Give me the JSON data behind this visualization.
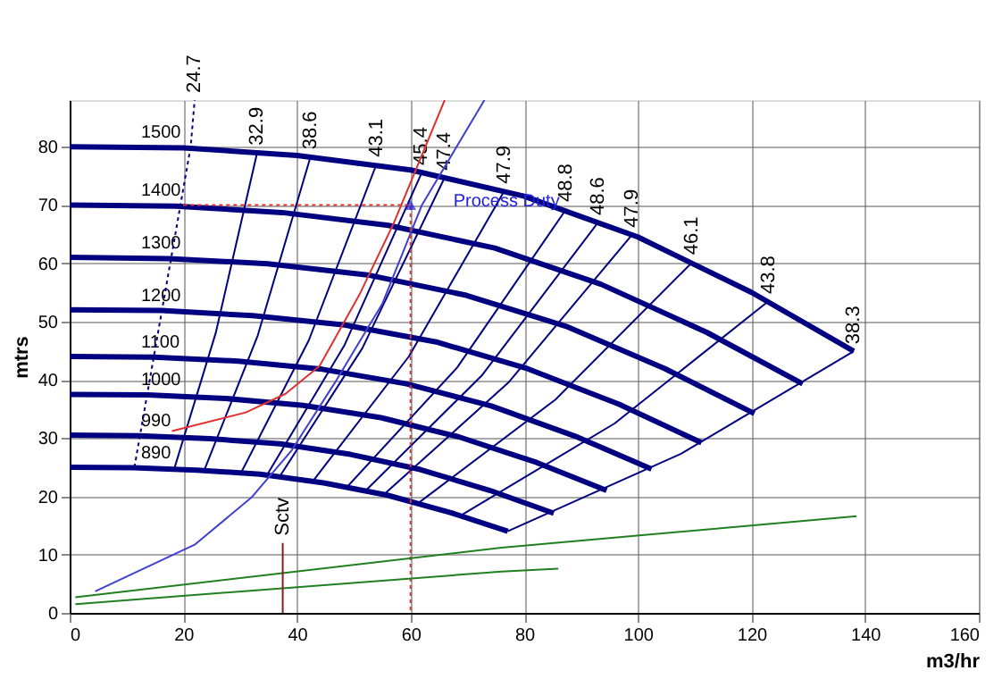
{
  "chart_data": {
    "type": "line",
    "xlabel": "m3/hr",
    "ylabel": "mtrs",
    "xlim": [
      0,
      160
    ],
    "ylim": [
      0,
      88
    ],
    "xticks": [
      0,
      20,
      40,
      60,
      80,
      100,
      120,
      140,
      160
    ],
    "yticks": [
      0,
      10,
      20,
      30,
      40,
      50,
      60,
      70,
      80
    ],
    "grid": true,
    "marker": "none",
    "annotations": [
      {
        "text": "Process Duty",
        "x": 60,
        "y": 70
      }
    ],
    "series": [
      {
        "name": "1500",
        "color": "#000080",
        "x": [
          0,
          20,
          40,
          60,
          80,
          100,
          120,
          138
        ],
        "values": [
          80,
          79.8,
          78.5,
          76,
          71.5,
          64.5,
          55,
          44.9
        ]
      },
      {
        "name": "1400",
        "color": "#000080",
        "x": [
          0,
          18.7,
          37.4,
          56.1,
          74.8,
          93.5,
          112.2,
          129
        ],
        "values": [
          70,
          69.8,
          68.7,
          66.5,
          62.6,
          56.4,
          48.1,
          39.3
        ]
      },
      {
        "name": "1300",
        "color": "#000080",
        "x": [
          0,
          17.5,
          34.9,
          52.4,
          69.8,
          87.3,
          104.8,
          120.5
        ],
        "values": [
          61,
          60.8,
          59.9,
          58,
          54.5,
          49.2,
          41.9,
          34.2
        ]
      },
      {
        "name": "1200",
        "color": "#000080",
        "x": [
          0,
          16.1,
          32.2,
          48.4,
          64.5,
          80.6,
          96.7,
          111.2
        ],
        "values": [
          52,
          51.9,
          51,
          49.4,
          46.5,
          41.9,
          35.8,
          29.2
        ]
      },
      {
        "name": "1100",
        "color": "#000080",
        "x": [
          0,
          14.8,
          29.7,
          44.5,
          59.3,
          74.2,
          89,
          102.4
        ],
        "values": [
          44,
          43.9,
          43.2,
          41.8,
          39.3,
          35.5,
          30.3,
          24.7
        ]
      },
      {
        "name": "1000",
        "color": "#000080",
        "x": [
          0,
          13.7,
          27.4,
          41.1,
          54.8,
          68.5,
          82.2,
          94.5
        ],
        "values": [
          37.5,
          37.4,
          36.8,
          35.6,
          33.5,
          30.2,
          25.8,
          21
        ]
      },
      {
        "name": "990",
        "color": "#000080",
        "x": [
          0,
          12.3,
          24.7,
          37,
          49.4,
          61.7,
          74,
          85.2
        ],
        "values": [
          30.5,
          30.4,
          29.9,
          29,
          27.2,
          24.6,
          21,
          17.1
        ]
      },
      {
        "name": "890",
        "color": "#000080",
        "x": [
          0,
          11.2,
          22.4,
          33.5,
          44.7,
          55.9,
          67.1,
          77.1
        ],
        "values": [
          25,
          24.9,
          24.5,
          23.8,
          22.3,
          20.2,
          17.2,
          14
        ]
      },
      {
        "name": "24.7",
        "color": "#000080",
        "line_style": "dotted",
        "x": [
          11.4,
          21.3,
          22
        ],
        "values": [
          25,
          80,
          88
        ]
      },
      {
        "name": "32.9",
        "color": "#000080",
        "x": [
          18.4,
          25.7,
          33
        ],
        "values": [
          24.7,
          48,
          79
        ]
      },
      {
        "name": "38.6",
        "color": "#000080",
        "x": [
          23.7,
          33.1,
          42.4
        ],
        "values": [
          24.5,
          47.6,
          78.3
        ]
      },
      {
        "name": "43.1",
        "color": "#000080",
        "x": [
          30.2,
          42.1,
          54
        ],
        "values": [
          24.1,
          46.8,
          77
        ]
      },
      {
        "name": "45.4",
        "color": "#000080",
        "x": [
          34.7,
          48.4,
          62
        ],
        "values": [
          23.6,
          46,
          75.6
        ]
      },
      {
        "name": "47.4",
        "color": "#000080",
        "x": [
          36.9,
          51.5,
          66
        ],
        "values": [
          23.3,
          45.4,
          74.7
        ]
      },
      {
        "name": "47.9",
        "color": "#000080",
        "x": [
          42.8,
          59.7,
          76.5
        ],
        "values": [
          22.6,
          44,
          72.4
        ]
      },
      {
        "name": "48.8",
        "color": "#000080",
        "x": [
          48.9,
          68.2,
          87.4
        ],
        "values": [
          21.7,
          42.1,
          69.3
        ]
      },
      {
        "name": "48.6",
        "color": "#000080",
        "x": [
          52,
          72.5,
          93
        ],
        "values": [
          20.9,
          40.7,
          67
        ]
      },
      {
        "name": "47.9",
        "color": "#000080",
        "x": [
          55.3,
          77.2,
          99
        ],
        "values": [
          20.3,
          39.5,
          64.9
        ]
      },
      {
        "name": "46.1",
        "color": "#000080",
        "x": [
          61.3,
          85.5,
          109.6
        ],
        "values": [
          18.8,
          36.6,
          60.2
        ]
      },
      {
        "name": "43.8",
        "color": "#000080",
        "x": [
          68.8,
          95.9,
          123
        ],
        "values": [
          16.7,
          32.5,
          53.5
        ]
      },
      {
        "name": "38.3",
        "color": "#000080",
        "x": [
          77.1,
          107.6,
          138
        ],
        "values": [
          14,
          27.3,
          44.9
        ]
      },
      {
        "color": "#e03030",
        "x": [
          18,
          31,
          38,
          44,
          51,
          57,
          66
        ],
        "values": [
          31.2,
          34.4,
          37.6,
          42.4,
          54.6,
          66.8,
          88
        ]
      },
      {
        "color": "#4040d0",
        "x": [
          4.5,
          22,
          32,
          39,
          47,
          55,
          62,
          73
        ],
        "values": [
          3.7,
          11.7,
          19.8,
          27.8,
          40,
          53,
          70,
          88
        ]
      },
      {
        "color": "#e03030",
        "line_style": "dotted",
        "x": [
          20,
          60,
          60
        ],
        "values": [
          70,
          70,
          0
        ]
      },
      {
        "color": "#208020",
        "x": [
          1,
          76,
          138.5
        ],
        "values": [
          2.7,
          11.2,
          16.6
        ]
      },
      {
        "color": "#208020",
        "x": [
          1,
          76,
          86
        ],
        "values": [
          1.5,
          7.1,
          7.6
        ]
      },
      {
        "name": "Sctv",
        "color": "#8b1a1a",
        "x": [
          37.5,
          37.5
        ],
        "values": [
          0,
          12
        ]
      }
    ]
  }
}
